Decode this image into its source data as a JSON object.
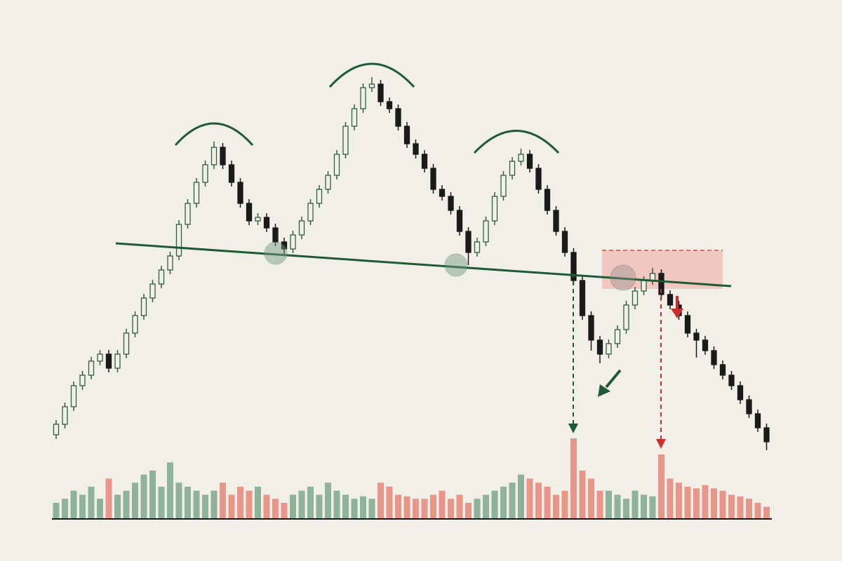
{
  "chart_data": {
    "type": "candlestick",
    "open": [
      80,
      95,
      120,
      150,
      165,
      185,
      195,
      175,
      195,
      225,
      250,
      275,
      295,
      315,
      335,
      380,
      410,
      440,
      465,
      490,
      465,
      440,
      410,
      385,
      390,
      375,
      355,
      345,
      365,
      385,
      410,
      430,
      450,
      480,
      520,
      545,
      575,
      580,
      555,
      545,
      520,
      495,
      480,
      460,
      430,
      420,
      400,
      370,
      340,
      355,
      385,
      420,
      450,
      470,
      480,
      460,
      430,
      400,
      370,
      340,
      300,
      250,
      215,
      195,
      210,
      230,
      265,
      285,
      300,
      310,
      280,
      265,
      250,
      225,
      215,
      200,
      180,
      165,
      150,
      130,
      110,
      90
    ],
    "high": [
      101,
      126,
      156,
      171,
      191,
      201,
      201,
      201,
      231,
      256,
      281,
      301,
      321,
      341,
      386,
      416,
      446,
      471,
      498,
      496,
      471,
      446,
      416,
      396,
      396,
      381,
      361,
      371,
      391,
      416,
      436,
      456,
      486,
      526,
      551,
      581,
      590,
      586,
      561,
      551,
      526,
      501,
      486,
      466,
      436,
      426,
      406,
      376,
      361,
      391,
      426,
      456,
      476,
      488,
      486,
      466,
      436,
      406,
      376,
      346,
      306,
      256,
      221,
      216,
      236,
      271,
      291,
      306,
      318,
      316,
      286,
      271,
      256,
      231,
      221,
      206,
      186,
      171,
      156,
      136,
      116,
      96
    ],
    "low": [
      74,
      89,
      114,
      144,
      159,
      179,
      169,
      169,
      189,
      219,
      244,
      269,
      289,
      309,
      329,
      374,
      404,
      434,
      459,
      459,
      434,
      404,
      379,
      379,
      369,
      349,
      338,
      339,
      359,
      379,
      404,
      424,
      444,
      474,
      514,
      539,
      569,
      549,
      539,
      514,
      489,
      474,
      454,
      424,
      414,
      394,
      364,
      322,
      334,
      349,
      379,
      414,
      444,
      464,
      454,
      424,
      394,
      364,
      334,
      294,
      244,
      200,
      182,
      189,
      204,
      224,
      259,
      279,
      294,
      274,
      259,
      244,
      219,
      190,
      194,
      174,
      159,
      144,
      124,
      104,
      84,
      58
    ],
    "close": [
      95,
      120,
      150,
      165,
      185,
      195,
      175,
      195,
      225,
      250,
      275,
      295,
      315,
      335,
      380,
      410,
      440,
      465,
      490,
      465,
      440,
      410,
      385,
      390,
      375,
      355,
      345,
      365,
      385,
      410,
      430,
      450,
      480,
      520,
      545,
      575,
      580,
      555,
      545,
      520,
      495,
      480,
      460,
      430,
      420,
      400,
      370,
      340,
      355,
      385,
      420,
      450,
      470,
      480,
      460,
      430,
      400,
      370,
      340,
      300,
      250,
      215,
      195,
      210,
      230,
      265,
      285,
      300,
      310,
      280,
      265,
      250,
      225,
      215,
      200,
      180,
      165,
      150,
      130,
      110,
      90,
      70
    ],
    "ylim": [
      0,
      700
    ],
    "volume": [
      20,
      25,
      35,
      30,
      40,
      25,
      50,
      30,
      35,
      45,
      55,
      60,
      40,
      70,
      45,
      40,
      35,
      30,
      35,
      45,
      30,
      40,
      35,
      40,
      30,
      25,
      20,
      30,
      35,
      40,
      30,
      45,
      35,
      30,
      25,
      28,
      25,
      45,
      40,
      30,
      28,
      25,
      25,
      30,
      35,
      25,
      30,
      20,
      25,
      30,
      35,
      40,
      45,
      55,
      50,
      45,
      40,
      30,
      35,
      100,
      60,
      50,
      35,
      35,
      30,
      25,
      35,
      30,
      28,
      80,
      50,
      45,
      40,
      38,
      42,
      38,
      35,
      30,
      28,
      25,
      20,
      15
    ],
    "y2lim": [
      0,
      100
    ],
    "up_color": "#2f5e3e",
    "down_color": "#1a1a1a",
    "volume_up_color": "#8fb29b",
    "volume_down_color": "#e8968a"
  }
}
